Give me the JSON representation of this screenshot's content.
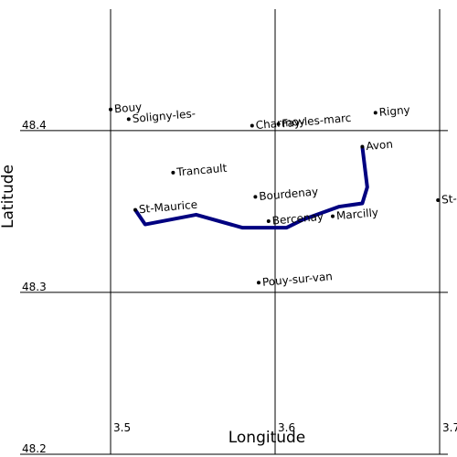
{
  "chart_data": {
    "type": "scatter",
    "xlabel": "Longitude",
    "ylabel": "Latitude",
    "xlim": [
      3.445,
      3.705
    ],
    "ylim": [
      48.2,
      48.475
    ],
    "xticks": [
      3.5,
      3.6,
      3.7
    ],
    "yticks": [
      48.2,
      48.3,
      48.4
    ],
    "grid": true,
    "points": {
      "color": "#000000",
      "labels": [
        "Bouy",
        "Soligny-les-",
        "Charmoy",
        "Fay-les-marc",
        "Rigny",
        "Avon",
        "Trancault",
        "Bourdenay",
        "St-Maurice",
        "Bercenay",
        "Marcilly",
        "St-",
        "Pouy-sur-van"
      ],
      "x": [
        3.5,
        3.511,
        3.586,
        3.602,
        3.661,
        3.653,
        3.538,
        3.588,
        3.515,
        3.596,
        3.635,
        3.699,
        3.59
      ],
      "y": [
        48.413,
        48.407,
        48.403,
        48.404,
        48.411,
        48.39,
        48.374,
        48.359,
        48.351,
        48.344,
        48.347,
        48.357,
        48.306
      ]
    },
    "route": {
      "color": "#000080",
      "x": [
        3.515,
        3.521,
        3.552,
        3.58,
        3.607,
        3.617,
        3.639,
        3.653,
        3.656,
        3.653
      ],
      "y": [
        48.351,
        48.342,
        48.348,
        48.34,
        48.34,
        48.345,
        48.353,
        48.355,
        48.365,
        48.39
      ]
    }
  }
}
